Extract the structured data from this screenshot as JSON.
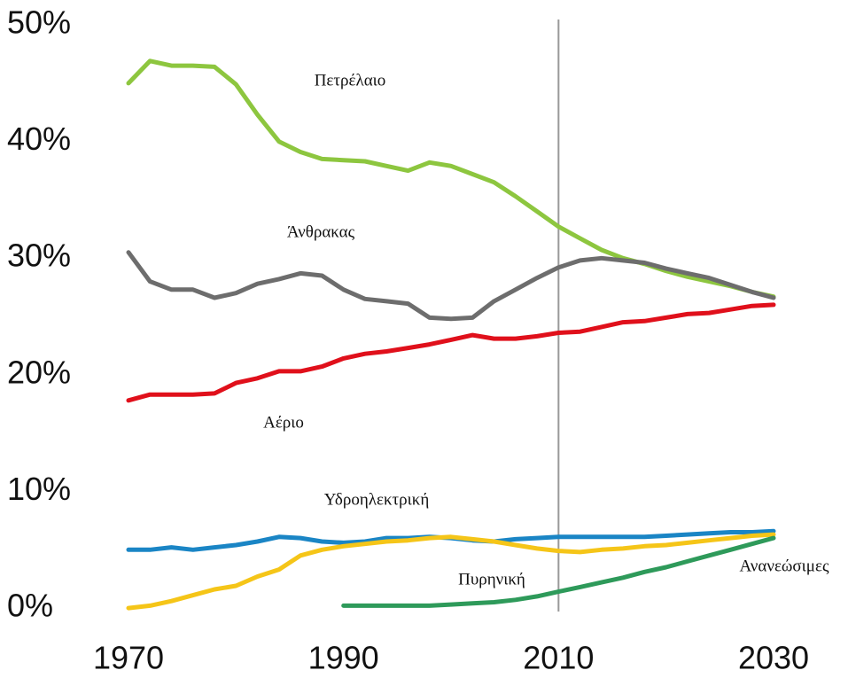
{
  "chart_data": {
    "type": "line",
    "x": [
      1970,
      1972,
      1974,
      1976,
      1978,
      1980,
      1982,
      1984,
      1986,
      1988,
      1990,
      1992,
      1994,
      1996,
      1998,
      2000,
      2002,
      2004,
      2006,
      2008,
      2010,
      2012,
      2014,
      2016,
      2018,
      2020,
      2022,
      2024,
      2026,
      2028,
      2030
    ],
    "series": [
      {
        "name": "Πετρέλαιο",
        "color": "#8dc63f",
        "values": [
          45.3,
          47.2,
          46.8,
          46.8,
          46.7,
          45.2,
          42.6,
          40.3,
          39.4,
          38.8,
          38.7,
          38.6,
          38.2,
          37.8,
          38.5,
          38.2,
          37.5,
          36.8,
          35.6,
          34.3,
          33,
          32,
          31,
          30.3,
          29.8,
          29.2,
          28.7,
          28.3,
          27.9,
          27.4,
          27
        ]
      },
      {
        "name": "Άνθρακας",
        "color": "#6d6d6d",
        "values": [
          30.8,
          28.3,
          27.6,
          27.6,
          26.9,
          27.3,
          28.1,
          28.5,
          29,
          28.8,
          27.6,
          26.8,
          26.6,
          26.4,
          25.2,
          25.1,
          25.2,
          26.6,
          27.6,
          28.6,
          29.5,
          30.1,
          30.3,
          30.1,
          29.9,
          29.4,
          29,
          28.6,
          28,
          27.4,
          26.9
        ]
      },
      {
        "name": "Αέριο",
        "color": "#e0101b",
        "values": [
          18.1,
          18.6,
          18.6,
          18.6,
          18.7,
          19.6,
          20,
          20.6,
          20.6,
          21,
          21.7,
          22.1,
          22.3,
          22.6,
          22.9,
          23.3,
          23.7,
          23.4,
          23.4,
          23.6,
          23.9,
          24,
          24.4,
          24.8,
          24.9,
          25.2,
          25.5,
          25.6,
          25.9,
          26.2,
          26.3
        ]
      },
      {
        "name": "Υδροηλεκτρική",
        "color": "#1a85c5",
        "values": [
          5.3,
          5.3,
          5.5,
          5.3,
          5.5,
          5.7,
          6,
          6.4,
          6.3,
          6,
          5.9,
          6,
          6.3,
          6.3,
          6.4,
          6.3,
          6.1,
          6,
          6.2,
          6.3,
          6.4,
          6.4,
          6.4,
          6.4,
          6.4,
          6.5,
          6.6,
          6.7,
          6.8,
          6.8,
          6.9
        ]
      },
      {
        "name": "Πυρηνική",
        "color": "#f5c518",
        "values": [
          0.3,
          0.5,
          0.9,
          1.4,
          1.9,
          2.2,
          3,
          3.6,
          4.8,
          5.3,
          5.6,
          5.8,
          6,
          6.1,
          6.3,
          6.4,
          6.2,
          6,
          5.7,
          5.4,
          5.2,
          5.1,
          5.3,
          5.4,
          5.6,
          5.7,
          5.9,
          6.1,
          6.3,
          6.5,
          6.6
        ]
      },
      {
        "name": "Ανανεώσιμες",
        "color": "#2e9a5a",
        "values": [
          null,
          null,
          null,
          null,
          null,
          null,
          null,
          null,
          null,
          null,
          0.5,
          0.5,
          0.5,
          0.5,
          0.5,
          0.6,
          0.7,
          0.8,
          1,
          1.3,
          1.7,
          2.1,
          2.5,
          2.9,
          3.4,
          3.8,
          4.3,
          4.8,
          5.3,
          5.8,
          6.3
        ]
      }
    ],
    "xlim": [
      1970,
      2030
    ],
    "xticks": [
      1970,
      1990,
      2010,
      2030
    ],
    "ylim": [
      0,
      50
    ],
    "yticks": [
      {
        "value": 0,
        "label": "0%"
      },
      {
        "value": 10,
        "label": "10%"
      },
      {
        "value": 20,
        "label": "20%"
      },
      {
        "value": 30,
        "label": "30%"
      },
      {
        "value": 40,
        "label": "40%"
      },
      {
        "value": 50,
        "label": "50%"
      }
    ],
    "vline": 2010
  }
}
